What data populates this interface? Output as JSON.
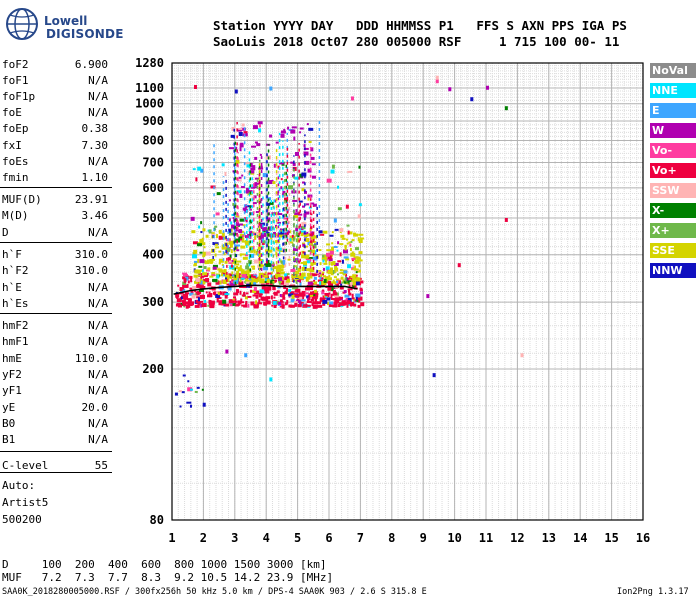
{
  "logo": {
    "line1": "Lowell",
    "line2": "DIGISONDE"
  },
  "header": {
    "line1": "Station YYYY DAY   DDD HHMMSS P1   FFS S AXN PPS IGA PS",
    "line2": "SaoLuis 2018 Oct07 280 005000 RSF     1 715 100 00- 11"
  },
  "params": [
    {
      "name": "foF2",
      "value": "6.900"
    },
    {
      "name": "foF1",
      "value": "N/A"
    },
    {
      "name": "foF1p",
      "value": "N/A"
    },
    {
      "name": "foE",
      "value": "N/A"
    },
    {
      "name": "foEp",
      "value": "0.38"
    },
    {
      "name": "fxI",
      "value": "7.30"
    },
    {
      "name": "foEs",
      "value": "N/A"
    },
    {
      "name": "fmin",
      "value": "1.10"
    },
    {
      "name": "MUF(D)",
      "value": "23.91"
    },
    {
      "name": "M(D)",
      "value": "3.46"
    },
    {
      "name": "D",
      "value": "N/A"
    },
    {
      "name": "h`F",
      "value": "310.0"
    },
    {
      "name": "h`F2",
      "value": "310.0"
    },
    {
      "name": "h`E",
      "value": "N/A"
    },
    {
      "name": "h`Es",
      "value": "N/A"
    },
    {
      "name": "hmF2",
      "value": "N/A"
    },
    {
      "name": "hmF1",
      "value": "N/A"
    },
    {
      "name": "hmE",
      "value": "110.0"
    },
    {
      "name": "yF2",
      "value": "N/A"
    },
    {
      "name": "yF1",
      "value": "N/A"
    },
    {
      "name": "yE",
      "value": "20.0"
    },
    {
      "name": "B0",
      "value": "N/A"
    },
    {
      "name": "B1",
      "value": "N/A"
    },
    {
      "name": "C-level",
      "value": "55"
    }
  ],
  "autoscaling": {
    "line1": "Auto:",
    "line2": "Artist5",
    "line3": "500200"
  },
  "legend": [
    {
      "label": "NoVal",
      "color": "#8c8c8c"
    },
    {
      "label": "NNE",
      "color": "#00e5ff"
    },
    {
      "label": "E",
      "color": "#3ea6ff"
    },
    {
      "label": "W",
      "color": "#b000b0"
    },
    {
      "label": "Vo-",
      "color": "#ff3ca0"
    },
    {
      "label": "Vo+",
      "color": "#ee0040"
    },
    {
      "label": "SSW",
      "color": "#ffb4b4"
    },
    {
      "label": "X-",
      "color": "#008000"
    },
    {
      "label": "X+",
      "color": "#6fb84a"
    },
    {
      "label": "SSE",
      "color": "#d4d400"
    },
    {
      "label": "NNW",
      "color": "#1010c0"
    }
  ],
  "bottom": {
    "line1": "D     100  200  400  600  800 1000 1500 3000 [km]",
    "line2": "MUF   7.2  7.3  7.7  8.3  9.2 10.5 14.2 23.9 [MHz]",
    "footer_left": "SAA0K_2018280005000.RSF / 300fx256h 50 kHz 5.0 km / DPS-4 SAA0K 903 / 2.6 S 315.8 E",
    "footer_right": "Ion2Png 1.3.17"
  },
  "chart_data": {
    "type": "scatter",
    "title": "",
    "xlabel": "",
    "ylabel": "",
    "xlim": [
      1,
      16
    ],
    "ylim": [
      80,
      1280
    ],
    "xticks": [
      1,
      2,
      3,
      4,
      5,
      6,
      7,
      8,
      9,
      10,
      11,
      12,
      13,
      14,
      15,
      16
    ],
    "yticks": [
      80,
      200,
      300,
      400,
      500,
      600,
      700,
      800,
      900,
      1000,
      1100,
      1280
    ],
    "y_scale": "log",
    "grid": true,
    "trace": {
      "name": "F2 trace",
      "x": [
        1.05,
        1.3,
        1.6,
        2.0,
        2.5,
        3.0,
        3.5,
        4.0,
        4.5,
        5.0,
        5.5,
        6.0,
        6.5,
        6.9
      ],
      "y": [
        315,
        318,
        322,
        325,
        328,
        330,
        332,
        332,
        330,
        330,
        330,
        330,
        330,
        325
      ]
    },
    "echo_clusters": [
      {
        "x_range": [
          1.1,
          7.0
        ],
        "y_range": [
          295,
          360
        ],
        "density": 520,
        "series": "Vo+"
      },
      {
        "x_range": [
          1.6,
          7.0
        ],
        "y_range": [
          340,
          470
        ],
        "density": 480,
        "series": "SSE"
      },
      {
        "x_range": [
          2.8,
          5.5
        ],
        "y_range": [
          450,
          900
        ],
        "density": 200,
        "series": "W"
      },
      {
        "x_range": [
          1.5,
          7.0
        ],
        "y_range": [
          300,
          700
        ],
        "density": 160,
        "series": "mixed"
      },
      {
        "x_range": [
          1.0,
          2.0
        ],
        "y_range": [
          160,
          200
        ],
        "density": 14,
        "series": "NNW"
      }
    ],
    "isolated_points": [
      {
        "x": 1.7,
        "y": 1120,
        "series": "Vo+"
      },
      {
        "x": 3.0,
        "y": 1090,
        "series": "NNW"
      },
      {
        "x": 4.1,
        "y": 1110,
        "series": "E"
      },
      {
        "x": 6.7,
        "y": 1045,
        "series": "Vo-"
      },
      {
        "x": 9.4,
        "y": 1160,
        "series": "Vo-"
      },
      {
        "x": 9.4,
        "y": 1185,
        "series": "SSW"
      },
      {
        "x": 9.8,
        "y": 1105,
        "series": "W"
      },
      {
        "x": 10.5,
        "y": 1040,
        "series": "NNW"
      },
      {
        "x": 11.0,
        "y": 1115,
        "series": "W"
      },
      {
        "x": 11.6,
        "y": 985,
        "series": "X-"
      },
      {
        "x": 9.1,
        "y": 315,
        "series": "W"
      },
      {
        "x": 9.3,
        "y": 195,
        "series": "NNW"
      },
      {
        "x": 10.1,
        "y": 380,
        "series": "Vo+"
      },
      {
        "x": 11.6,
        "y": 500,
        "series": "Vo+"
      },
      {
        "x": 12.1,
        "y": 220,
        "series": "SSW"
      },
      {
        "x": 2.7,
        "y": 225,
        "series": "W"
      },
      {
        "x": 3.3,
        "y": 220,
        "series": "E"
      },
      {
        "x": 4.1,
        "y": 190,
        "series": "NNE"
      }
    ]
  }
}
